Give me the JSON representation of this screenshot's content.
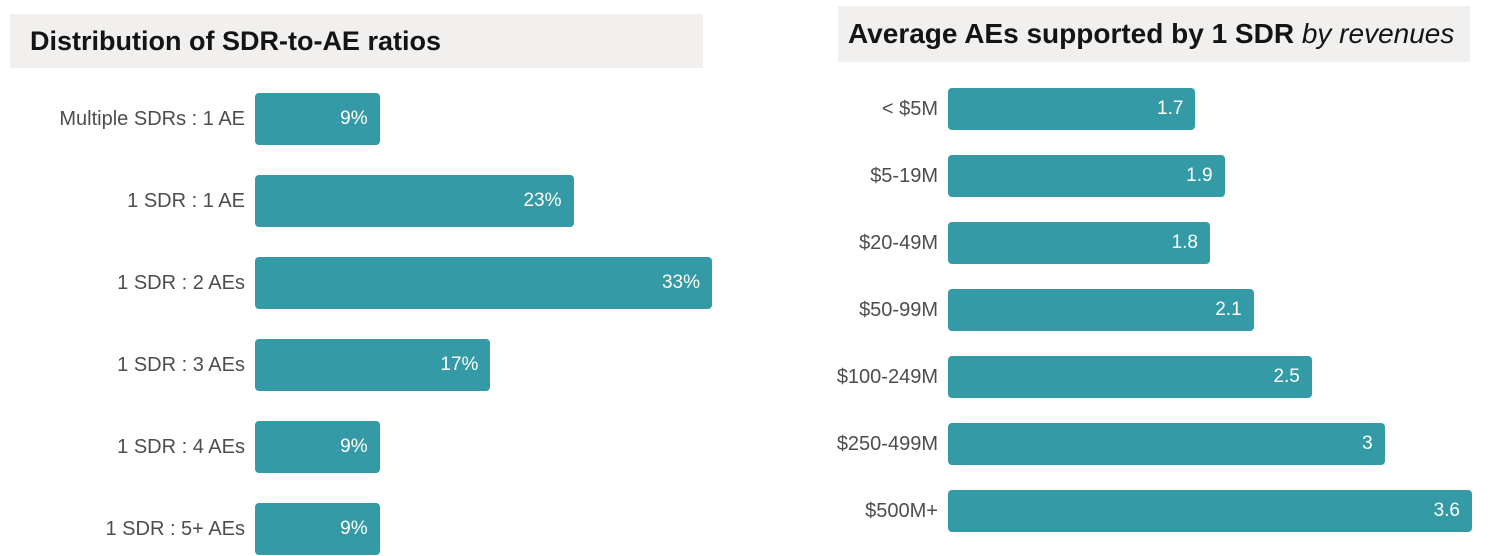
{
  "colors": {
    "bar": "#339aa6",
    "title_background": "#f1f0ee",
    "title_text": "#141414",
    "category_label_text": "#4d4d4d",
    "value_label_text": "#ffffff",
    "page_background": "#ffffff"
  },
  "chart_data": [
    {
      "type": "bar",
      "orientation": "horizontal",
      "title": "Distribution of SDR-to-AE ratios",
      "title_italic": "",
      "categories": [
        "Multiple SDRs : 1 AE",
        "1 SDR : 1 AE",
        "1 SDR : 2 AEs",
        "1 SDR : 3 AEs",
        "1 SDR : 4 AEs",
        "1 SDR : 5+ AEs"
      ],
      "values": [
        9,
        23,
        33,
        17,
        9,
        9
      ],
      "value_labels": [
        "9%",
        "23%",
        "33%",
        "17%",
        "9%",
        "9%"
      ],
      "value_suffix": "%",
      "xlabel": "",
      "ylabel": "",
      "xlim": [
        0,
        33
      ],
      "grid": false,
      "legend": false,
      "bar_color": "#339aa6"
    },
    {
      "type": "bar",
      "orientation": "horizontal",
      "title": "Average AEs supported by 1 SDR",
      "title_italic": " by revenues",
      "categories": [
        "< $5M",
        "$5-19M",
        "$20-49M",
        "$50-99M",
        "$100-249M",
        "$250-499M",
        "$500M+"
      ],
      "values": [
        1.7,
        1.9,
        1.8,
        2.1,
        2.5,
        3,
        3.6
      ],
      "value_labels": [
        "1.7",
        "1.9",
        "1.8",
        "2.1",
        "2.5",
        "3",
        "3.6"
      ],
      "value_suffix": "",
      "xlabel": "",
      "ylabel": "",
      "xlim": [
        0,
        3.6
      ],
      "grid": false,
      "legend": false,
      "bar_color": "#339aa6"
    }
  ]
}
